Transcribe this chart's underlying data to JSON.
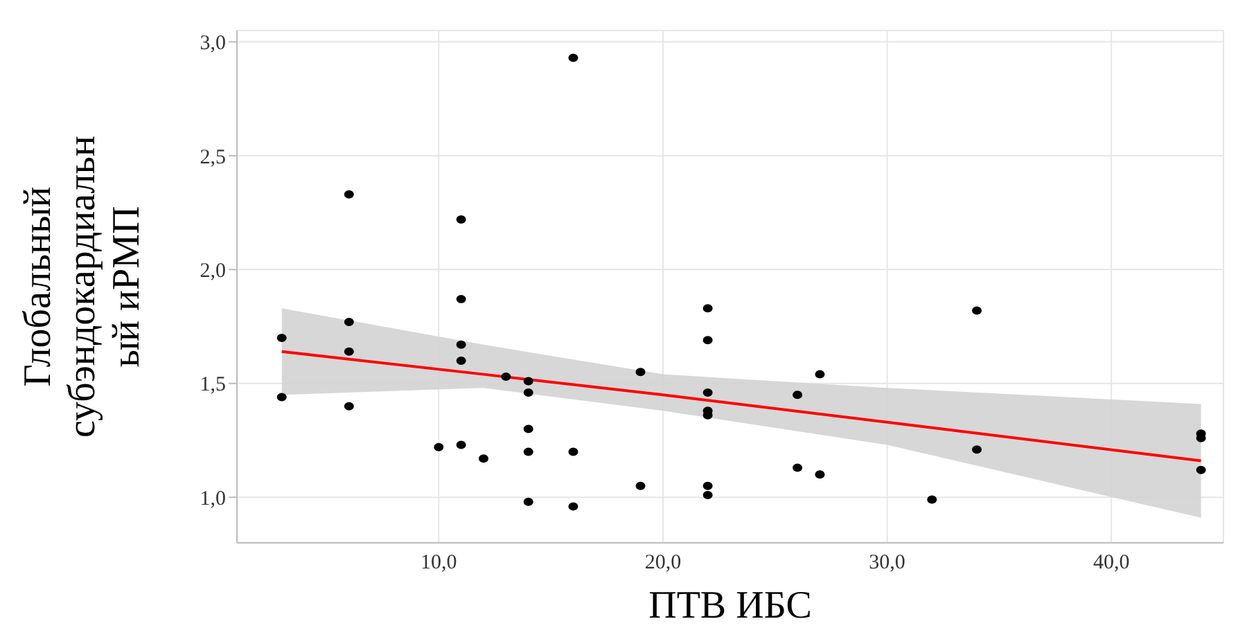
{
  "chart_data": {
    "type": "scatter",
    "xlabel": "ПТВ ИБС",
    "ylabel": "Глобальный субэндокардиальный иРМП",
    "xlim": [
      1,
      45
    ],
    "xticks": [
      {
        "value": 10,
        "label": "10,0"
      },
      {
        "value": 20,
        "label": "20,0"
      },
      {
        "value": 30,
        "label": "30,0"
      },
      {
        "value": 40,
        "label": "40,0"
      }
    ],
    "ylim": [
      0.8,
      3.05
    ],
    "yticks": [
      {
        "value": 1,
        "label": "1,0"
      },
      {
        "value": 1.5,
        "label": "1,5"
      },
      {
        "value": 2,
        "label": "2,0"
      },
      {
        "value": 2.5,
        "label": "2,5"
      },
      {
        "value": 3,
        "label": "3,0"
      }
    ],
    "grid": true,
    "legend": false,
    "series": [
      {
        "type": "line",
        "marker": "none",
        "color": "#ff0000",
        "x": [
          3,
          12,
          20,
          30,
          44
        ],
        "values": [
          1.64,
          1.54,
          1.45,
          1.33,
          1.16
        ],
        "lower": [
          1.45,
          1.48,
          1.38,
          1.23,
          0.91
        ],
        "upper": [
          1.83,
          1.67,
          1.54,
          1.48,
          1.41
        ]
      },
      {
        "marker": "circle",
        "color": "#000000",
        "x": [
          3,
          3,
          6,
          6,
          6,
          6,
          10,
          11,
          11,
          11,
          11,
          11,
          12,
          13,
          14,
          14,
          14,
          14,
          14,
          16,
          16,
          16,
          19,
          19,
          22,
          22,
          22,
          22,
          22,
          22,
          22,
          26,
          26,
          27,
          27,
          32,
          34,
          34,
          44,
          44,
          44
        ],
        "values": [
          1.7,
          1.44,
          2.33,
          1.77,
          1.64,
          1.4,
          1.22,
          2.22,
          1.87,
          1.67,
          1.6,
          1.23,
          1.17,
          1.53,
          1.51,
          1.46,
          1.3,
          1.2,
          0.98,
          2.93,
          1.2,
          0.96,
          1.55,
          1.05,
          1.83,
          1.69,
          1.46,
          1.38,
          1.36,
          1.05,
          1.01,
          1.45,
          1.13,
          1.54,
          1.1,
          0.99,
          1.82,
          1.21,
          1.26,
          1.28,
          1.12
        ]
      }
    ]
  }
}
